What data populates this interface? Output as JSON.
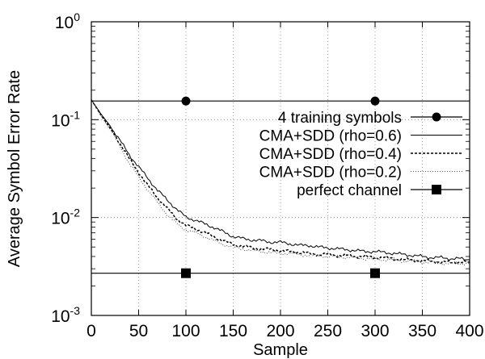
{
  "chart_data": {
    "type": "line",
    "xlabel": "Sample",
    "ylabel": "Average Symbol Error Rate",
    "y_scale": "log",
    "grid": true,
    "legend_position": "top-right",
    "xlim": [
      0,
      400
    ],
    "ylim": [
      0.001,
      1
    ],
    "x_ticks": [
      "0",
      "50",
      "100",
      "150",
      "200",
      "250",
      "300",
      "350",
      "400"
    ],
    "x_tick_values": [
      0,
      50,
      100,
      150,
      200,
      250,
      300,
      350,
      400
    ],
    "y_ticks": [
      {
        "base": "10",
        "exp": "0",
        "value": 1
      },
      {
        "base": "10",
        "exp": "-1",
        "value": 0.1
      },
      {
        "base": "10",
        "exp": "-2",
        "value": 0.01
      },
      {
        "base": "10",
        "exp": "-3",
        "value": 0.001
      }
    ],
    "series": [
      {
        "name": "4 training symbols",
        "style": "solid",
        "marker": "circle",
        "color": "#000000",
        "x": [
          0,
          400
        ],
        "y": [
          0.155,
          0.155
        ],
        "marker_x": [
          100,
          300
        ]
      },
      {
        "name": "CMA+SDD (rho=0.6)",
        "style": "solid-thin",
        "color": "#000000",
        "x": [
          0,
          10,
          20,
          30,
          40,
          50,
          60,
          70,
          80,
          90,
          100,
          110,
          120,
          130,
          140,
          150,
          160,
          170,
          180,
          190,
          200,
          210,
          220,
          230,
          240,
          250,
          260,
          270,
          280,
          290,
          300,
          310,
          320,
          330,
          340,
          350,
          360,
          370,
          380,
          390,
          400
        ],
        "y": [
          0.16,
          0.115,
          0.086,
          0.062,
          0.044,
          0.033,
          0.025,
          0.019,
          0.0152,
          0.0122,
          0.0101,
          0.0094,
          0.0086,
          0.0079,
          0.0071,
          0.0064,
          0.0061,
          0.0059,
          0.0058,
          0.0056,
          0.0056,
          0.0054,
          0.0052,
          0.0052,
          0.005,
          0.0049,
          0.0048,
          0.0047,
          0.0046,
          0.0045,
          0.0045,
          0.0044,
          0.0043,
          0.0042,
          0.0041,
          0.004,
          0.0039,
          0.0039,
          0.0038,
          0.0038,
          0.0037
        ]
      },
      {
        "name": "CMA+SDD (rho=0.4)",
        "style": "dashed",
        "color": "#000000",
        "x": [
          0,
          10,
          20,
          30,
          40,
          50,
          60,
          70,
          80,
          90,
          100,
          110,
          120,
          130,
          140,
          150,
          160,
          170,
          180,
          190,
          200,
          210,
          220,
          230,
          240,
          250,
          260,
          270,
          280,
          290,
          300,
          310,
          320,
          330,
          340,
          350,
          360,
          370,
          380,
          390,
          400
        ],
        "y": [
          0.16,
          0.112,
          0.082,
          0.058,
          0.04,
          0.029,
          0.021,
          0.016,
          0.0124,
          0.0098,
          0.0083,
          0.0077,
          0.007,
          0.0063,
          0.0058,
          0.0053,
          0.0051,
          0.0049,
          0.0048,
          0.0047,
          0.0046,
          0.0045,
          0.0044,
          0.0043,
          0.0042,
          0.0042,
          0.0041,
          0.0041,
          0.004,
          0.004,
          0.0039,
          0.0039,
          0.0038,
          0.0037,
          0.0037,
          0.0036,
          0.0036,
          0.0035,
          0.0035,
          0.0035,
          0.0035
        ]
      },
      {
        "name": "CMA+SDD (rho=0.2)",
        "style": "dotted",
        "color": "#555555",
        "x": [
          0,
          10,
          20,
          30,
          40,
          50,
          60,
          70,
          80,
          90,
          100,
          110,
          120,
          130,
          140,
          150,
          160,
          170,
          180,
          190,
          200,
          210,
          220,
          230,
          240,
          250,
          260,
          270,
          280,
          290,
          300,
          310,
          320,
          330,
          340,
          350,
          360,
          370,
          380,
          390,
          400
        ],
        "y": [
          0.16,
          0.11,
          0.079,
          0.054,
          0.036,
          0.026,
          0.019,
          0.0142,
          0.0108,
          0.0087,
          0.0075,
          0.007,
          0.0064,
          0.0058,
          0.0053,
          0.005,
          0.0048,
          0.0046,
          0.0045,
          0.0044,
          0.0043,
          0.0043,
          0.0042,
          0.0041,
          0.0041,
          0.004,
          0.004,
          0.0039,
          0.0039,
          0.0038,
          0.0038,
          0.0037,
          0.0037,
          0.0036,
          0.0036,
          0.0035,
          0.0035,
          0.0034,
          0.0034,
          0.0034,
          0.0034
        ]
      },
      {
        "name": "perfect channel",
        "style": "solid",
        "marker": "square",
        "color": "#000000",
        "x": [
          0,
          400
        ],
        "y": [
          0.0027,
          0.0027
        ],
        "marker_x": [
          100,
          300
        ]
      }
    ]
  }
}
